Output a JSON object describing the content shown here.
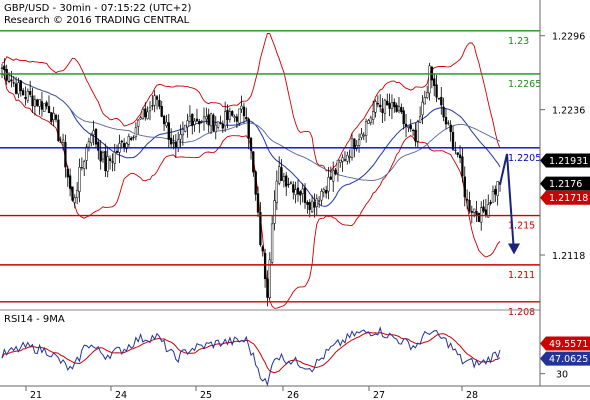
{
  "header": {
    "line1": "GBP/USD - 30min - 07:15:22 (UTC+2)",
    "line2": "Research © 2016 TRADING CENTRAL"
  },
  "chart_data": [
    {
      "type": "candlestick",
      "title": "GBP/USD - 30min",
      "ylim": [
        1.2075,
        1.2325
      ],
      "y_ticks": [
        1.2296,
        1.2236,
        1.2176,
        1.2118
      ],
      "x_ticks": [
        "21",
        "24",
        "25",
        "26",
        "27",
        "28"
      ],
      "levels": [
        {
          "label": "1.23",
          "value": 1.23,
          "color": "#1a8f1a"
        },
        {
          "label": "1.2265",
          "value": 1.2265,
          "color": "#1a8f1a"
        },
        {
          "label": "1.2205",
          "value": 1.2205,
          "color": "#0000cc"
        },
        {
          "label": "1.215",
          "value": 1.215,
          "color": "#cc0000"
        },
        {
          "label": "1.211",
          "value": 1.211,
          "color": "#cc0000"
        },
        {
          "label": "1.208",
          "value": 1.208,
          "color": "#cc0000"
        }
      ],
      "last_price": "1.2176",
      "ma_blue": "1.21931",
      "ma_red": "1.21718",
      "forecast": "bearish",
      "path_anchors": [
        [
          0,
          1.227
        ],
        [
          8,
          1.225
        ],
        [
          20,
          1.2238
        ],
        [
          26,
          1.2205
        ],
        [
          30,
          1.216
        ],
        [
          38,
          1.222
        ],
        [
          44,
          1.219
        ],
        [
          52,
          1.221
        ],
        [
          58,
          1.2225
        ],
        [
          66,
          1.2245
        ],
        [
          74,
          1.22
        ],
        [
          80,
          1.223
        ],
        [
          92,
          1.2225
        ],
        [
          104,
          1.2235
        ],
        [
          110,
          1.213
        ],
        [
          113,
          1.209
        ],
        [
          115,
          1.215
        ],
        [
          118,
          1.2185
        ],
        [
          124,
          1.2175
        ],
        [
          132,
          1.216
        ],
        [
          140,
          1.218
        ],
        [
          150,
          1.221
        ],
        [
          160,
          1.224
        ],
        [
          168,
          1.2235
        ],
        [
          176,
          1.221
        ],
        [
          182,
          1.2265
        ],
        [
          188,
          1.223
        ],
        [
          194,
          1.22
        ],
        [
          198,
          1.216
        ],
        [
          204,
          1.215
        ],
        [
          212,
          1.2178
        ]
      ]
    },
    {
      "type": "line",
      "title": "RSI14 - 9MA",
      "ylim": [
        20,
        80
      ],
      "y_ticks": [
        30
      ],
      "rsi_last": "47.0625",
      "ma_last": "49.5571",
      "path_anchors": [
        [
          0,
          45
        ],
        [
          10,
          52
        ],
        [
          20,
          48
        ],
        [
          26,
          38
        ],
        [
          30,
          32
        ],
        [
          36,
          55
        ],
        [
          44,
          45
        ],
        [
          52,
          50
        ],
        [
          58,
          58
        ],
        [
          66,
          60
        ],
        [
          74,
          42
        ],
        [
          80,
          50
        ],
        [
          92,
          55
        ],
        [
          104,
          57
        ],
        [
          110,
          30
        ],
        [
          113,
          20
        ],
        [
          116,
          45
        ],
        [
          124,
          40
        ],
        [
          132,
          35
        ],
        [
          140,
          50
        ],
        [
          150,
          62
        ],
        [
          160,
          65
        ],
        [
          168,
          58
        ],
        [
          176,
          52
        ],
        [
          182,
          65
        ],
        [
          190,
          55
        ],
        [
          196,
          40
        ],
        [
          204,
          38
        ],
        [
          212,
          48
        ]
      ]
    }
  ]
}
